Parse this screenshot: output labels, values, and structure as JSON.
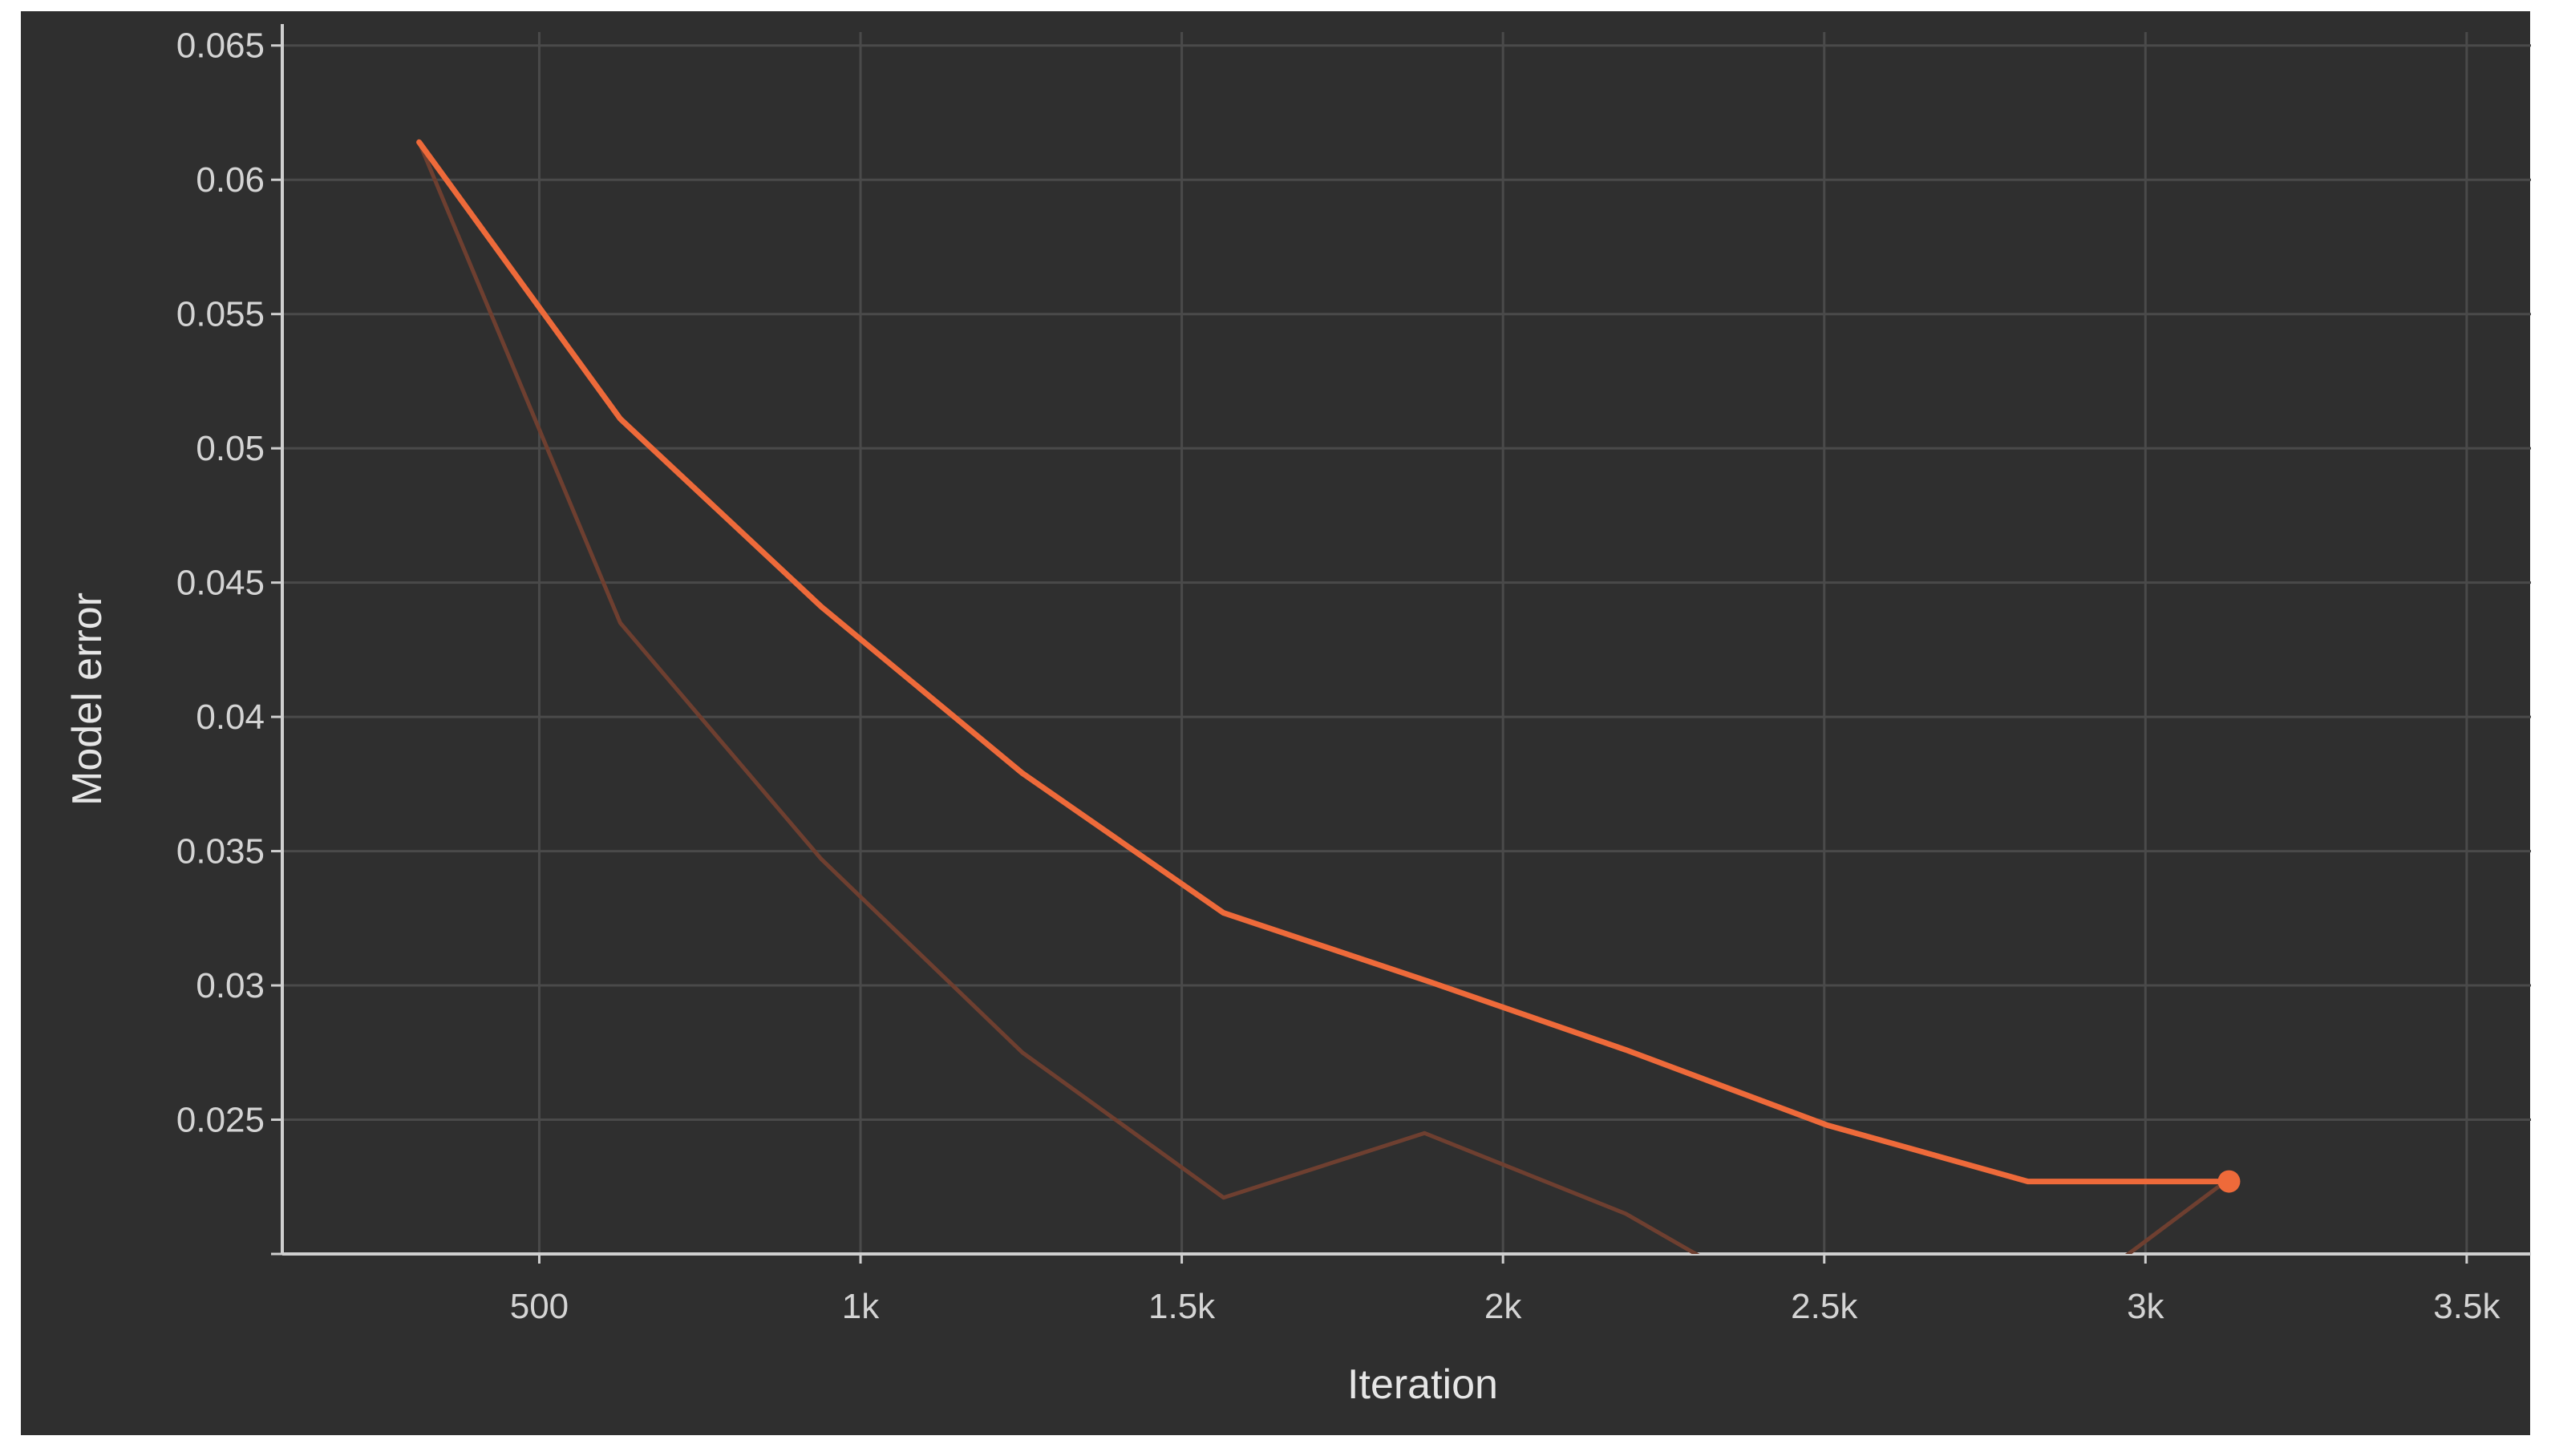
{
  "chart_data": {
    "type": "line",
    "xlabel": "Iteration",
    "ylabel": "Model error",
    "xlim": [
      100,
      3600
    ],
    "ylim": [
      0.02,
      0.0655
    ],
    "x_ticks": [
      500,
      1000,
      1500,
      2000,
      2500,
      3000,
      3500
    ],
    "x_tick_labels": [
      "500",
      "1k",
      "1.5k",
      "2k",
      "2.5k",
      "3k",
      "3.5k"
    ],
    "y_ticks": [
      0.025,
      0.03,
      0.035,
      0.04,
      0.045,
      0.05,
      0.055,
      0.06,
      0.065
    ],
    "y_tick_labels": [
      "0.025",
      "0.03",
      "0.035",
      "0.04",
      "0.045",
      "0.05",
      "0.055",
      "0.06",
      "0.065"
    ],
    "grid": true,
    "colors": {
      "background": "#2f2f2f",
      "grid": "#4a4a4a",
      "axis": "#cfcfcf",
      "smoothed": "#ee6a3a",
      "raw": "#6e3f30"
    },
    "series": [
      {
        "x": [
          313,
          626,
          939,
          1252,
          1565,
          1878,
          2191,
          2504,
          2817,
          3130
        ],
        "y": [
          0.0614,
          0.0511,
          0.0441,
          0.0379,
          0.0327,
          0.0302,
          0.0276,
          0.0248,
          0.0227,
          0.0227
        ],
        "color": "#ee6a3a",
        "style": "smoothed"
      },
      {
        "x": [
          313,
          626,
          939,
          1252,
          1565,
          1878,
          2191,
          2504,
          2817,
          3130
        ],
        "y": [
          0.0614,
          0.0435,
          0.0347,
          0.0275,
          0.0221,
          0.0245,
          0.0215,
          0.0172,
          0.0172,
          0.0228
        ],
        "color": "#6e3f30",
        "style": "raw"
      }
    ]
  }
}
